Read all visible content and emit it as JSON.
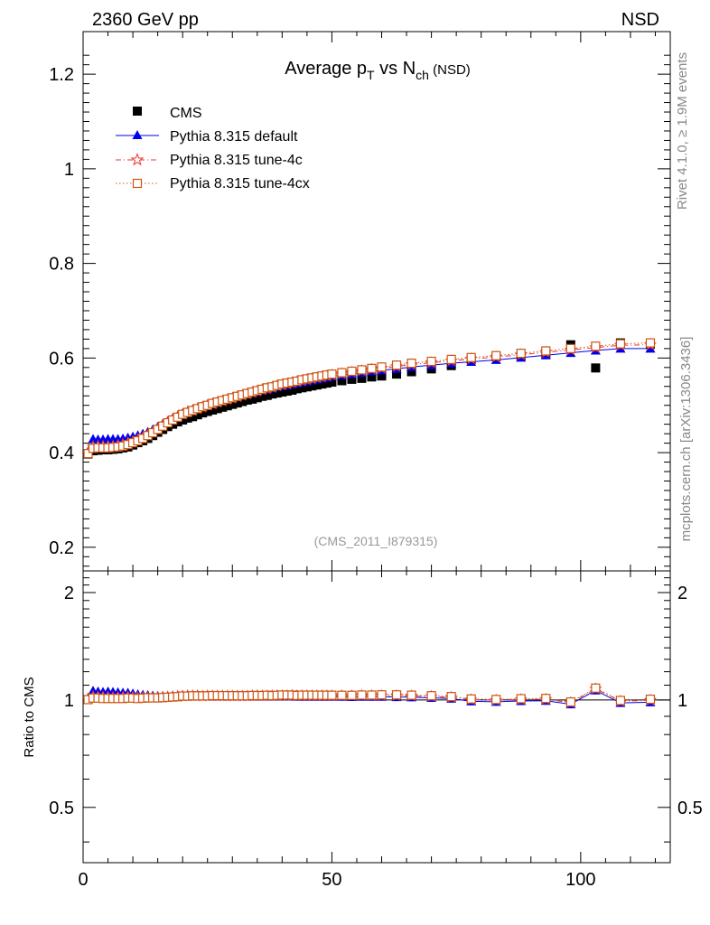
{
  "header": {
    "left": "2360 GeV pp",
    "right": "NSD"
  },
  "side_labels": {
    "rivet": "Rivet 4.1.0, ≥ 1.9M events",
    "mcplots": "mcplots.cern.ch [arXiv:1306.3436]"
  },
  "chart_data": {
    "type": "scatter",
    "title": {
      "main": "Average p",
      "sub1": "T",
      "mid": " vs N",
      "sub2": "ch",
      "tail": " (NSD)"
    },
    "analysis_label": "(CMS_2011_I879315)",
    "colors": {
      "cms": "#000000",
      "default": "#0000ee",
      "tune4c": "#ee3333",
      "tune4cx": "#cc5511"
    },
    "legend": [
      {
        "key": "cms",
        "label": "CMS"
      },
      {
        "key": "default",
        "label": "Pythia 8.315 default"
      },
      {
        "key": "tune4c",
        "label": "Pythia 8.315 tune-4c"
      },
      {
        "key": "tune4cx",
        "label": "Pythia 8.315 tune-4cx"
      }
    ],
    "main": {
      "xlim": [
        0,
        118
      ],
      "ylim": [
        0.15,
        1.29
      ],
      "yticks": [
        0.2,
        0.4,
        0.6,
        0.8,
        1.0,
        1.2
      ],
      "ytick_labels": [
        "0.2",
        "0.4",
        "0.6",
        "0.8",
        "1",
        "1.2"
      ]
    },
    "ratio": {
      "ylabel": "Ratio to CMS",
      "ylim": [
        0.35,
        2.3
      ],
      "yticks": [
        0.5,
        1,
        2
      ],
      "ytick_labels": [
        "0.5",
        "1",
        "2"
      ]
    },
    "xticks": [
      0,
      50,
      100
    ],
    "xtick_labels": [
      "0",
      "50",
      "100"
    ],
    "series": {
      "cms": {
        "x": [
          1,
          2,
          3,
          4,
          5,
          6,
          7,
          8,
          9,
          10,
          11,
          12,
          13,
          14,
          15,
          16,
          17,
          18,
          19,
          20,
          21,
          22,
          23,
          24,
          25,
          26,
          27,
          28,
          29,
          30,
          31,
          32,
          33,
          34,
          35,
          36,
          37,
          38,
          39,
          40,
          41,
          42,
          43,
          44,
          45,
          46,
          47,
          48,
          49,
          50,
          52,
          54,
          56,
          58,
          60,
          63,
          66,
          70,
          74,
          78,
          83,
          88,
          93,
          98,
          103,
          108,
          114
        ],
        "y": [
          0.397,
          0.404,
          0.405,
          0.406,
          0.406,
          0.407,
          0.408,
          0.41,
          0.412,
          0.416,
          0.421,
          0.425,
          0.43,
          0.436,
          0.443,
          0.449,
          0.455,
          0.46,
          0.465,
          0.469,
          0.473,
          0.476,
          0.48,
          0.484,
          0.487,
          0.49,
          0.493,
          0.496,
          0.499,
          0.502,
          0.505,
          0.508,
          0.511,
          0.513,
          0.516,
          0.519,
          0.521,
          0.524,
          0.526,
          0.528,
          0.53,
          0.532,
          0.535,
          0.537,
          0.539,
          0.541,
          0.543,
          0.545,
          0.547,
          0.549,
          0.552,
          0.555,
          0.557,
          0.56,
          0.562,
          0.566,
          0.571,
          0.577,
          0.584,
          0.597,
          0.603,
          0.605,
          0.609,
          0.628,
          0.579,
          0.632,
          0.629
        ]
      },
      "default": {
        "x": [
          1,
          2,
          3,
          4,
          5,
          6,
          7,
          8,
          9,
          10,
          11,
          12,
          13,
          14,
          15,
          16,
          17,
          18,
          19,
          20,
          21,
          22,
          23,
          24,
          25,
          26,
          27,
          28,
          29,
          30,
          31,
          32,
          33,
          34,
          35,
          36,
          37,
          38,
          39,
          40,
          41,
          42,
          43,
          44,
          45,
          46,
          47,
          48,
          49,
          50,
          52,
          54,
          56,
          58,
          60,
          63,
          66,
          70,
          74,
          78,
          83,
          88,
          93,
          98,
          103,
          108,
          114
        ],
        "y": [
          0.403,
          0.429,
          0.428,
          0.428,
          0.429,
          0.429,
          0.429,
          0.43,
          0.432,
          0.434,
          0.437,
          0.44,
          0.444,
          0.449,
          0.455,
          0.461,
          0.467,
          0.473,
          0.478,
          0.483,
          0.487,
          0.491,
          0.494,
          0.497,
          0.5,
          0.503,
          0.506,
          0.509,
          0.512,
          0.515,
          0.518,
          0.521,
          0.524,
          0.526,
          0.529,
          0.532,
          0.534,
          0.536,
          0.539,
          0.541,
          0.543,
          0.545,
          0.547,
          0.549,
          0.551,
          0.553,
          0.555,
          0.557,
          0.559,
          0.561,
          0.564,
          0.566,
          0.569,
          0.572,
          0.574,
          0.577,
          0.581,
          0.585,
          0.589,
          0.592,
          0.596,
          0.601,
          0.606,
          0.611,
          0.616,
          0.62,
          0.62
        ]
      },
      "tune4c": {
        "x": [
          1,
          2,
          3,
          4,
          5,
          6,
          7,
          8,
          9,
          10,
          11,
          12,
          13,
          14,
          15,
          16,
          17,
          18,
          19,
          20,
          21,
          22,
          23,
          24,
          25,
          26,
          27,
          28,
          29,
          30,
          31,
          32,
          33,
          34,
          35,
          36,
          37,
          38,
          39,
          40,
          41,
          42,
          43,
          44,
          45,
          46,
          47,
          48,
          49,
          50,
          52,
          54,
          56,
          58,
          60,
          63,
          66,
          70,
          74,
          78,
          83,
          88,
          93,
          98,
          103,
          108,
          114
        ],
        "y": [
          0.4,
          0.413,
          0.414,
          0.414,
          0.414,
          0.414,
          0.416,
          0.418,
          0.421,
          0.424,
          0.428,
          0.432,
          0.437,
          0.443,
          0.45,
          0.457,
          0.464,
          0.47,
          0.476,
          0.481,
          0.486,
          0.489,
          0.493,
          0.496,
          0.5,
          0.503,
          0.506,
          0.509,
          0.512,
          0.515,
          0.518,
          0.521,
          0.524,
          0.527,
          0.53,
          0.533,
          0.535,
          0.538,
          0.541,
          0.543,
          0.545,
          0.548,
          0.55,
          0.552,
          0.554,
          0.556,
          0.558,
          0.56,
          0.562,
          0.564,
          0.567,
          0.57,
          0.573,
          0.576,
          0.578,
          0.582,
          0.586,
          0.59,
          0.594,
          0.598,
          0.602,
          0.607,
          0.612,
          0.617,
          0.622,
          0.627,
          0.628
        ]
      },
      "tune4cx": {
        "x": [
          1,
          2,
          3,
          4,
          5,
          6,
          7,
          8,
          9,
          10,
          11,
          12,
          13,
          14,
          15,
          16,
          17,
          18,
          19,
          20,
          21,
          22,
          23,
          24,
          25,
          26,
          27,
          28,
          29,
          30,
          31,
          32,
          33,
          34,
          35,
          36,
          37,
          38,
          39,
          40,
          41,
          42,
          43,
          44,
          45,
          46,
          47,
          48,
          49,
          50,
          52,
          54,
          56,
          58,
          60,
          63,
          66,
          70,
          74,
          78,
          83,
          88,
          93,
          98,
          103,
          108,
          114
        ],
        "y": [
          0.398,
          0.409,
          0.41,
          0.41,
          0.41,
          0.411,
          0.412,
          0.414,
          0.417,
          0.421,
          0.425,
          0.43,
          0.436,
          0.442,
          0.449,
          0.456,
          0.463,
          0.469,
          0.475,
          0.481,
          0.485,
          0.489,
          0.493,
          0.497,
          0.5,
          0.504,
          0.507,
          0.51,
          0.513,
          0.516,
          0.519,
          0.522,
          0.525,
          0.528,
          0.531,
          0.534,
          0.537,
          0.539,
          0.542,
          0.545,
          0.547,
          0.549,
          0.551,
          0.554,
          0.556,
          0.558,
          0.56,
          0.562,
          0.564,
          0.566,
          0.569,
          0.572,
          0.575,
          0.578,
          0.581,
          0.585,
          0.589,
          0.593,
          0.597,
          0.601,
          0.605,
          0.61,
          0.615,
          0.62,
          0.625,
          0.63,
          0.632
        ]
      }
    }
  }
}
